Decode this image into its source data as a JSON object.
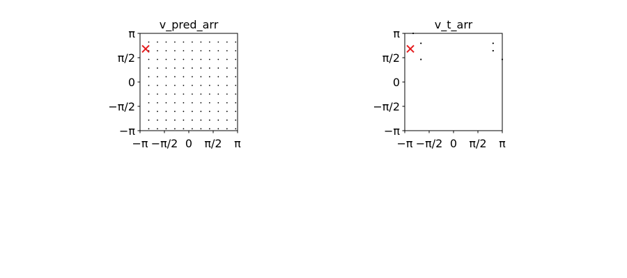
{
  "chart_data": [
    {
      "type": "scatter",
      "title": "v_pred_arr",
      "xlabel": "",
      "ylabel": "",
      "xlim": [
        -3.14159,
        3.14159
      ],
      "ylim": [
        -3.14159,
        3.14159
      ],
      "xticks": [
        {
          "value": -3.14159,
          "label": "−π"
        },
        {
          "value": -1.5708,
          "label": "−π/2"
        },
        {
          "value": 0,
          "label": "0"
        },
        {
          "value": 1.5708,
          "label": "π/2"
        },
        {
          "value": 3.14159,
          "label": "π"
        }
      ],
      "yticks": [
        {
          "value": -3.14159,
          "label": "−π"
        },
        {
          "value": -1.5708,
          "label": "−π/2"
        },
        {
          "value": 0,
          "label": "0"
        },
        {
          "value": 1.5708,
          "label": "π/2"
        },
        {
          "value": 3.14159,
          "label": "π"
        }
      ],
      "grid": false,
      "series": [
        {
          "kind": "dot-grid",
          "color": "#000000",
          "x_values": [
            -2.58,
            -2.02,
            -1.46,
            -0.9,
            -0.34,
            0.22,
            0.78,
            1.34,
            1.9,
            2.46,
            3.02
          ],
          "y_values": [
            2.58,
            2.02,
            1.46,
            0.9,
            0.34,
            -0.22,
            -0.78,
            -1.34,
            -1.9,
            -2.46,
            -3.02
          ]
        },
        {
          "kind": "marker-x",
          "color": "#e41a1c",
          "x": [
            -2.78
          ],
          "y": [
            2.14
          ]
        }
      ]
    },
    {
      "type": "scatter",
      "title": "v_t_arr",
      "xlabel": "",
      "ylabel": "",
      "xlim": [
        -3.14159,
        3.14159
      ],
      "ylim": [
        -3.14159,
        3.14159
      ],
      "xticks": [
        {
          "value": -3.14159,
          "label": "−π"
        },
        {
          "value": -1.5708,
          "label": "−π/2"
        },
        {
          "value": 0,
          "label": "0"
        },
        {
          "value": 1.5708,
          "label": "π/2"
        },
        {
          "value": 3.14159,
          "label": "π"
        }
      ],
      "yticks": [
        {
          "value": -3.14159,
          "label": "−π"
        },
        {
          "value": -1.5708,
          "label": "−π/2"
        },
        {
          "value": 0,
          "label": "0"
        },
        {
          "value": 1.5708,
          "label": "π/2"
        },
        {
          "value": 3.14159,
          "label": "π"
        }
      ],
      "grid": false,
      "series": [
        {
          "kind": "points",
          "color": "#000000",
          "x": [
            -2.1,
            -2.1,
            2.55,
            2.55,
            -2.6,
            3.14
          ],
          "y": [
            2.5,
            1.46,
            2.5,
            2.02,
            3.14,
            1.46
          ]
        },
        {
          "kind": "marker-x",
          "color": "#e41a1c",
          "x": [
            -2.78
          ],
          "y": [
            2.14
          ]
        }
      ]
    }
  ]
}
